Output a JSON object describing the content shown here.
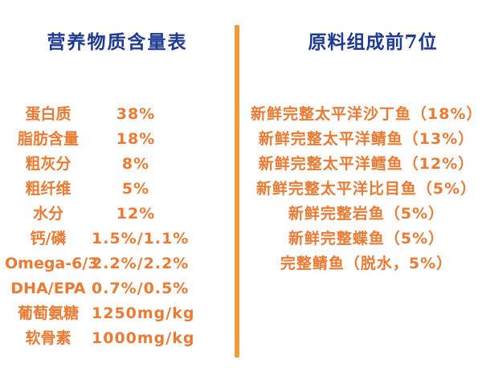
{
  "colors": {
    "header_blue": "#1E3A94",
    "body_orange": "#ED7A30",
    "divider_orange": "#F19A3C",
    "background": "#ffffff"
  },
  "chart_data": [
    {
      "type": "table",
      "title": "营养物质含量表",
      "rows": [
        {
          "label": "蛋白质",
          "value": "38%"
        },
        {
          "label": "脂肪含量",
          "value": "18%"
        },
        {
          "label": "粗灰分",
          "value": "8%"
        },
        {
          "label": "粗纤维",
          "value": "5%"
        },
        {
          "label": "水分",
          "value": "12%"
        },
        {
          "label": "钙/磷",
          "value": "1.5%/1.1%"
        },
        {
          "label": "Omega-6/3",
          "value": "2.2%/2.2%"
        },
        {
          "label": "DHA/EPA",
          "value": "0.7%/0.5%"
        },
        {
          "label": "葡萄氨糖",
          "value": "1250mg/kg"
        },
        {
          "label": "软骨素",
          "value": "1000mg/kg"
        }
      ]
    },
    {
      "type": "table",
      "title": "原料组成前7位",
      "items": [
        "新鲜完整太平洋沙丁鱼（18%）",
        "新鲜完整太平洋鲭鱼（13%）",
        "新鲜完整太平洋鳕鱼（12%）",
        "新鲜完整太平洋比目鱼（5%）",
        "新鲜完整岩鱼（5%）",
        "新鲜完整蝶鱼（5%）",
        "完整鲭鱼（脱水，5%）"
      ]
    }
  ]
}
